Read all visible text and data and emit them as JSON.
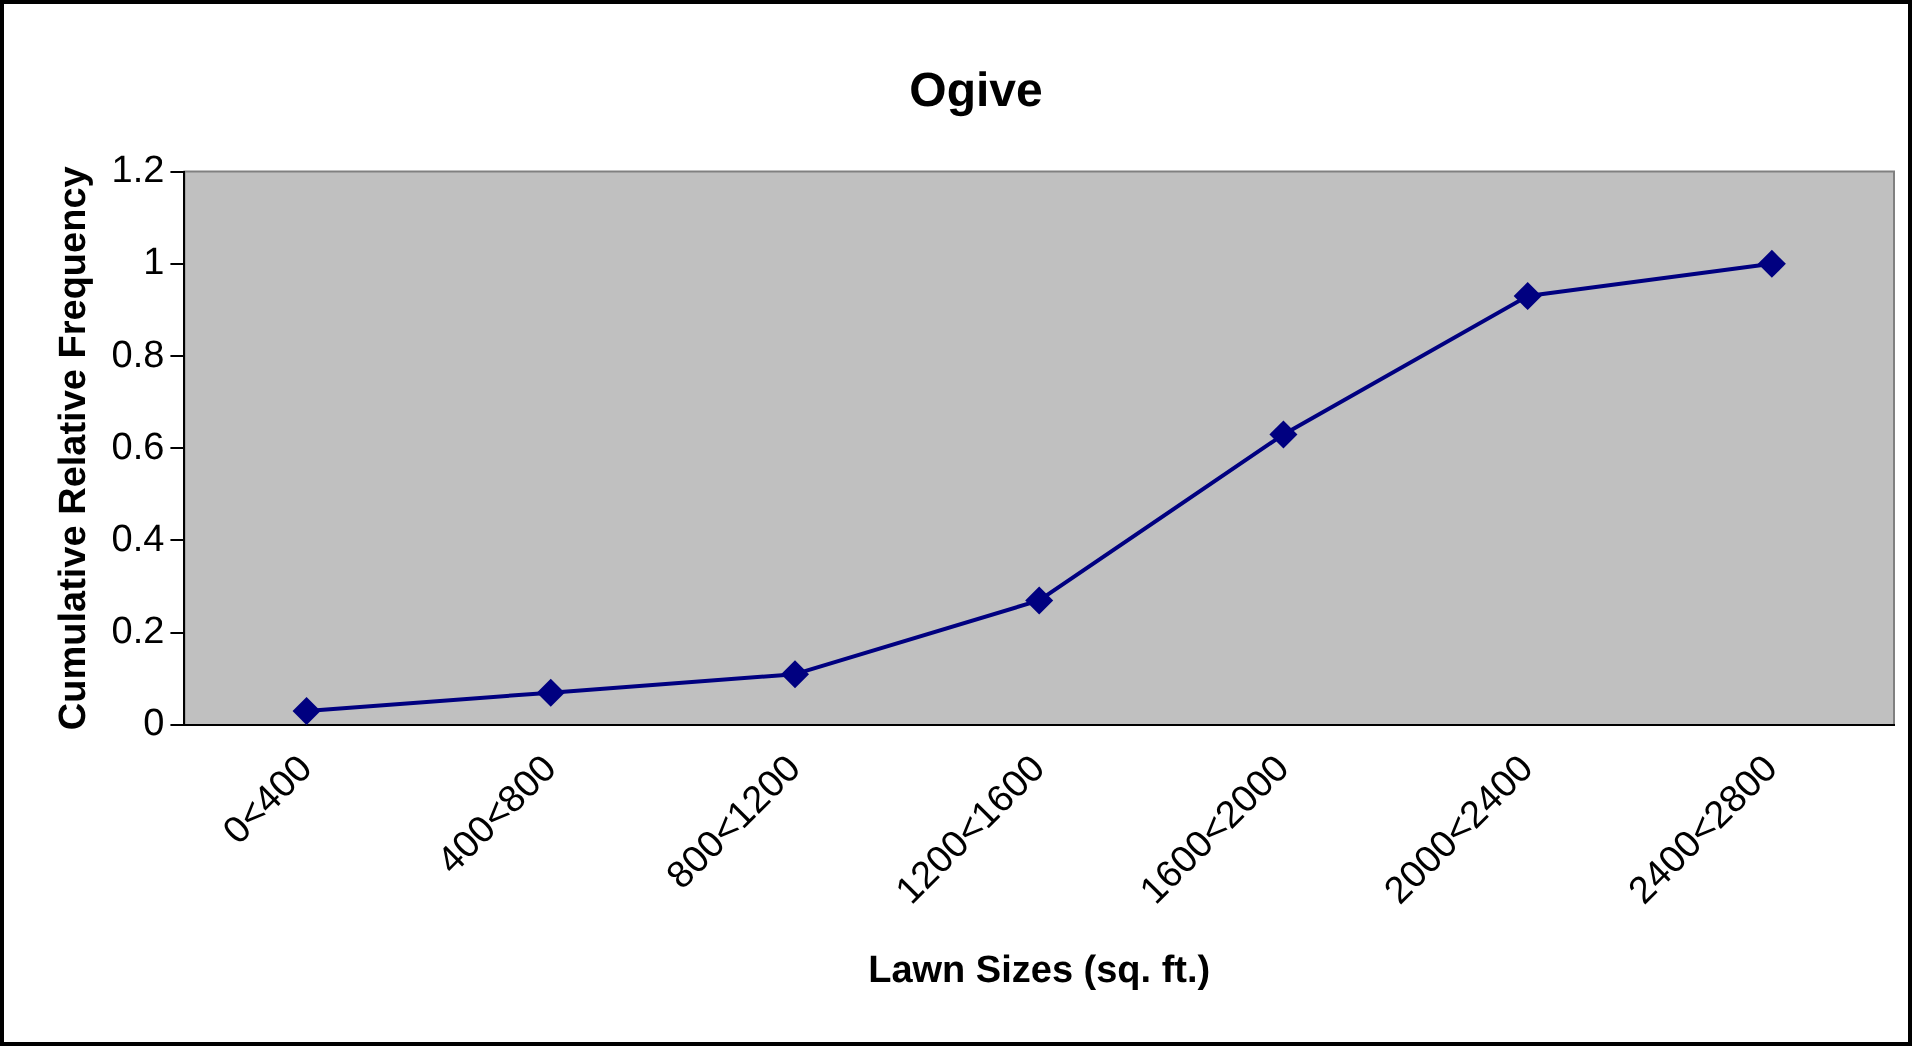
{
  "chart_data": {
    "type": "line",
    "title": "Ogive",
    "xlabel": "Lawn Sizes (sq. ft.)",
    "ylabel": "Cumulative Relative Frequency",
    "categories": [
      "0<400",
      "400<800",
      "800<1200",
      "1200<1600",
      "1600<2000",
      "2000<2400",
      "2400<2800"
    ],
    "series": [
      {
        "color": "#000080",
        "values": [
          0.03,
          0.07,
          0.11,
          0.27,
          0.63,
          0.93,
          1
        ]
      }
    ],
    "ylim": [
      0,
      1.2
    ],
    "yticks": [
      0,
      0.2,
      0.4,
      0.6,
      0.8,
      1,
      1.2
    ],
    "grid": false,
    "legend": false,
    "marker": "diamond",
    "line_style": "solid"
  }
}
